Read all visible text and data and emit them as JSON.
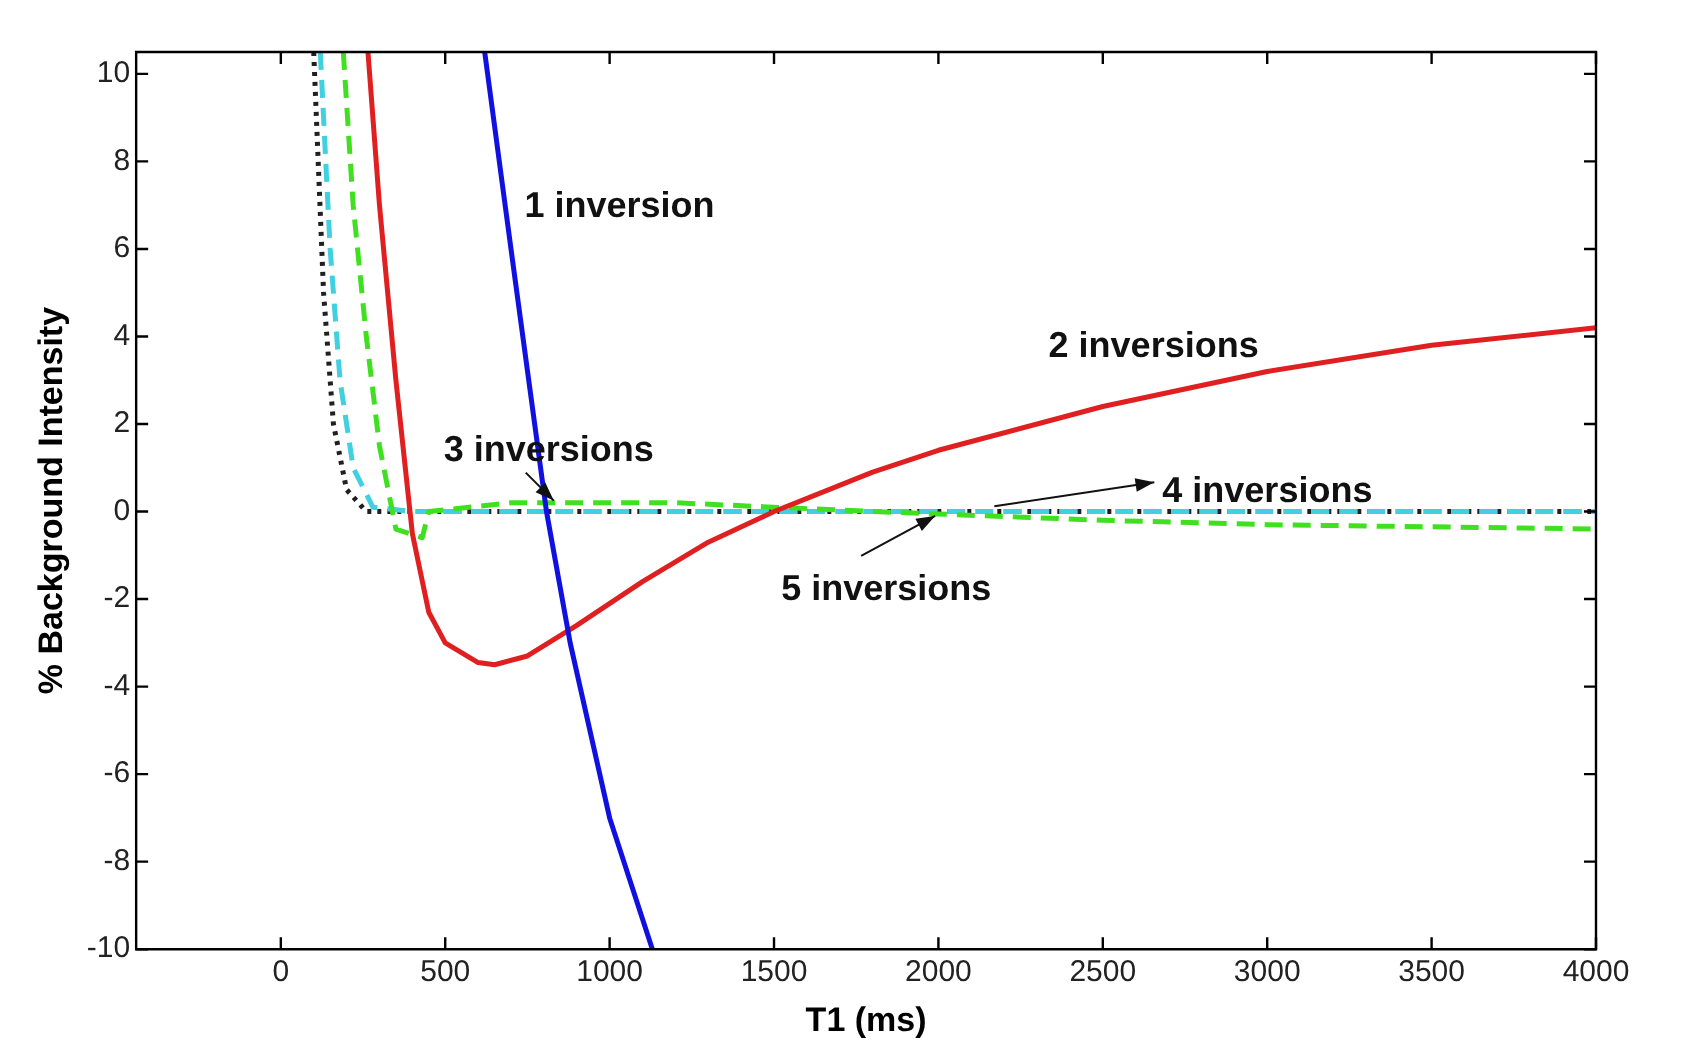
{
  "chart_data": {
    "type": "line",
    "xlabel": "T1 (ms)",
    "ylabel": "% Background Intensity",
    "xlim": [
      -440,
      4000
    ],
    "ylim": [
      -10,
      10.5
    ],
    "xticks": [
      0,
      500,
      1000,
      1500,
      2000,
      2500,
      3000,
      3500,
      4000
    ],
    "yticks": [
      -10,
      -8,
      -6,
      -4,
      -2,
      0,
      2,
      4,
      6,
      8,
      10
    ],
    "grid": false,
    "legend": false,
    "marker": "none",
    "annotations": [
      {
        "text": "1 inversion",
        "x": 680,
        "y": 7
      },
      {
        "text": "2 inversions",
        "x": 2700,
        "y": 2.8
      },
      {
        "text": "3 inversions",
        "x": 830,
        "y": 0.25
      },
      {
        "text": "4 inversions",
        "x": 2170,
        "y": 0.12
      },
      {
        "text": "5 inversions",
        "x": 1990,
        "y": -0.1
      }
    ],
    "series": [
      {
        "color": "#1010e0",
        "line_style": "solid",
        "x": [
          620,
          700,
          808,
          880,
          1000,
          1130
        ],
        "values": [
          10.5,
          6,
          0,
          -3,
          -7,
          -10
        ]
      },
      {
        "color": "#e02020",
        "line_style": "solid",
        "x": [
          265,
          300,
          350,
          400,
          450,
          500,
          600,
          650,
          750,
          900,
          1100,
          1300,
          1500,
          1800,
          2000,
          2500,
          3000,
          3500,
          4000
        ],
        "values": [
          10.5,
          7,
          3,
          -0.5,
          -2.3,
          -3,
          -3.45,
          -3.5,
          -3.3,
          -2.6,
          -1.6,
          -0.7,
          0,
          0.9,
          1.4,
          2.4,
          3.2,
          3.8,
          4.2
        ]
      },
      {
        "color": "#40e020",
        "line_style": "dashed",
        "x": [
          190,
          220,
          260,
          300,
          350,
          430,
          450,
          700,
          1200,
          1800,
          2500,
          3000,
          4000
        ],
        "values": [
          10.5,
          7,
          4,
          1.5,
          -0.4,
          -0.6,
          0,
          0.2,
          0.2,
          0,
          -0.2,
          -0.3,
          -0.4
        ]
      },
      {
        "color": "#40d0e0",
        "line_style": "dashed",
        "x": [
          120,
          150,
          180,
          220,
          280,
          400,
          4000
        ],
        "values": [
          10.5,
          6,
          3,
          1,
          0.1,
          0,
          0
        ]
      },
      {
        "color": "#202020",
        "line_style": "dotted",
        "x": [
          100,
          130,
          160,
          200,
          260,
          4000
        ],
        "values": [
          10.5,
          5,
          2,
          0.5,
          0,
          0
        ]
      }
    ]
  }
}
